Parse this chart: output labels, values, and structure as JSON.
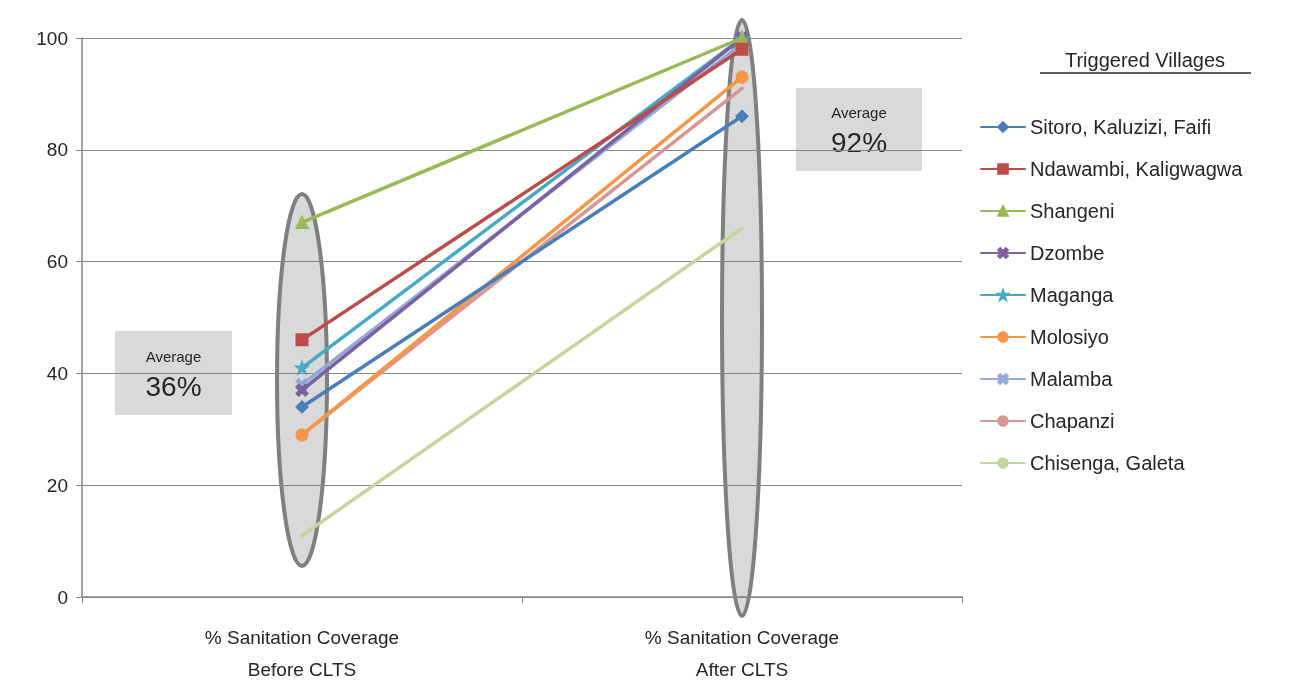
{
  "chart_data": {
    "type": "line",
    "categories": [
      "% Sanitation Coverage\nBefore CLTS",
      "% Sanitation Coverage\nAfter CLTS"
    ],
    "ylim": [
      0,
      100
    ],
    "yticks": [
      0,
      20,
      40,
      60,
      80,
      100
    ],
    "grid": "y",
    "legend": "right",
    "legend_title": "Triggered Villages",
    "annotations": [
      "Average\n36%",
      "Average\n92%"
    ],
    "series": [
      {
        "name": "Sitoro, Kaluzizi, Faifi",
        "color": "#4a7ebb",
        "marker": "diamond",
        "values": [
          34,
          86
        ]
      },
      {
        "name": "Ndawambi, Kaligwagwa",
        "color": "#be4b48",
        "marker": "square",
        "values": [
          46,
          98
        ]
      },
      {
        "name": "Shangeni",
        "color": "#98b954",
        "marker": "triangle",
        "values": [
          67,
          100
        ]
      },
      {
        "name": "Dzombe",
        "color": "#7d60a0",
        "marker": "cross",
        "values": [
          37,
          100
        ]
      },
      {
        "name": "Maganga",
        "color": "#46aac5",
        "marker": "star",
        "values": [
          41,
          100
        ]
      },
      {
        "name": "Molosiyo",
        "color": "#f79646",
        "marker": "circle",
        "values": [
          29,
          93
        ]
      },
      {
        "name": "Malamba",
        "color": "#95a9d6",
        "marker": "cross",
        "values": [
          38,
          99
        ]
      },
      {
        "name": "Chapanzi",
        "color": "#d99694",
        "marker": "none",
        "values": [
          29,
          91
        ]
      },
      {
        "name": "Chisenga, Galeta",
        "color": "#c3d69b",
        "marker": "none",
        "values": [
          11,
          66
        ]
      }
    ]
  }
}
